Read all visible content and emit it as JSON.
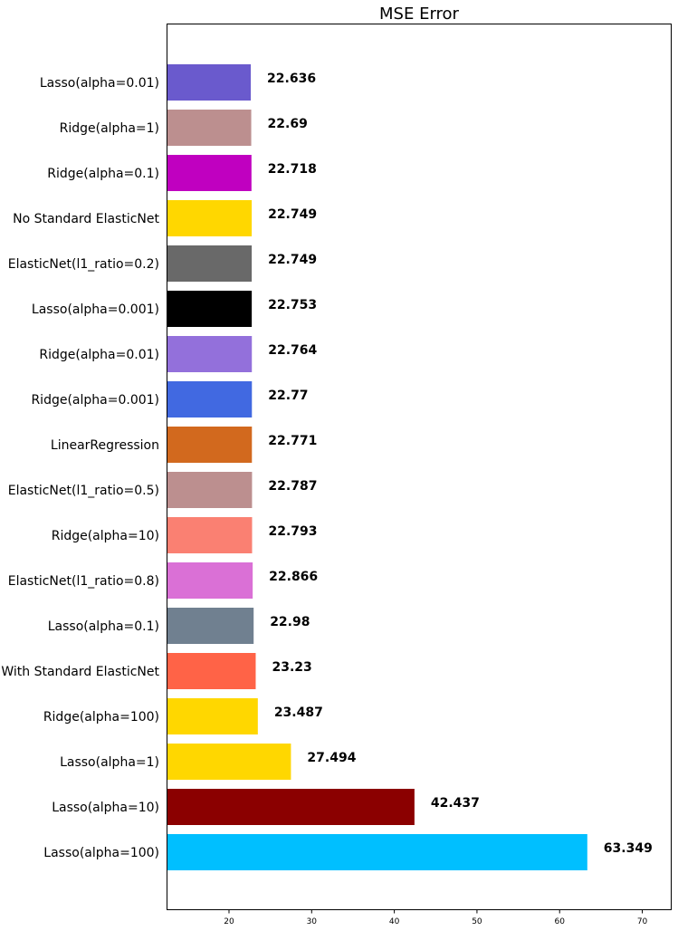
{
  "chart_data": {
    "type": "bar",
    "orientation": "horizontal",
    "title": "MSE Error",
    "xlabel": "",
    "ylabel": "",
    "xlim": [
      12.5,
      73.5
    ],
    "xticks": [
      20,
      30,
      40,
      50,
      60,
      70
    ],
    "grid": false,
    "categories": [
      "Lasso(alpha=0.01)",
      "Ridge(alpha=1)",
      "Ridge(alpha=0.1)",
      "No Standard ElasticNet",
      "ElasticNet(l1_ratio=0.2)",
      "Lasso(alpha=0.001)",
      "Ridge(alpha=0.01)",
      "Ridge(alpha=0.001)",
      "LinearRegression",
      "ElasticNet(l1_ratio=0.5)",
      "Ridge(alpha=10)",
      "ElasticNet(l1_ratio=0.8)",
      "Lasso(alpha=0.1)",
      "With Standard ElasticNet",
      "Ridge(alpha=100)",
      "Lasso(alpha=1)",
      "Lasso(alpha=10)",
      "Lasso(alpha=100)"
    ],
    "values": [
      22.636,
      22.69,
      22.718,
      22.749,
      22.749,
      22.753,
      22.764,
      22.77,
      22.771,
      22.787,
      22.793,
      22.866,
      22.98,
      23.23,
      23.487,
      27.494,
      42.437,
      63.349
    ],
    "value_labels": [
      "22.636",
      "22.69",
      "22.718",
      "22.749",
      "22.749",
      "22.753",
      "22.764",
      "22.77",
      "22.771",
      "22.787",
      "22.793",
      "22.866",
      "22.98",
      "23.23",
      "23.487",
      "27.494",
      "42.437",
      "63.349"
    ],
    "colors": [
      "#6a5acd",
      "#bc8f8f",
      "#c000c0",
      "#ffd700",
      "#696969",
      "#000000",
      "#9370db",
      "#4169e1",
      "#d2691e",
      "#bc8f8f",
      "#fa8072",
      "#da70d6",
      "#708090",
      "#ff6347",
      "#ffd700",
      "#ffd700",
      "#8b0000",
      "#00bfff"
    ]
  }
}
